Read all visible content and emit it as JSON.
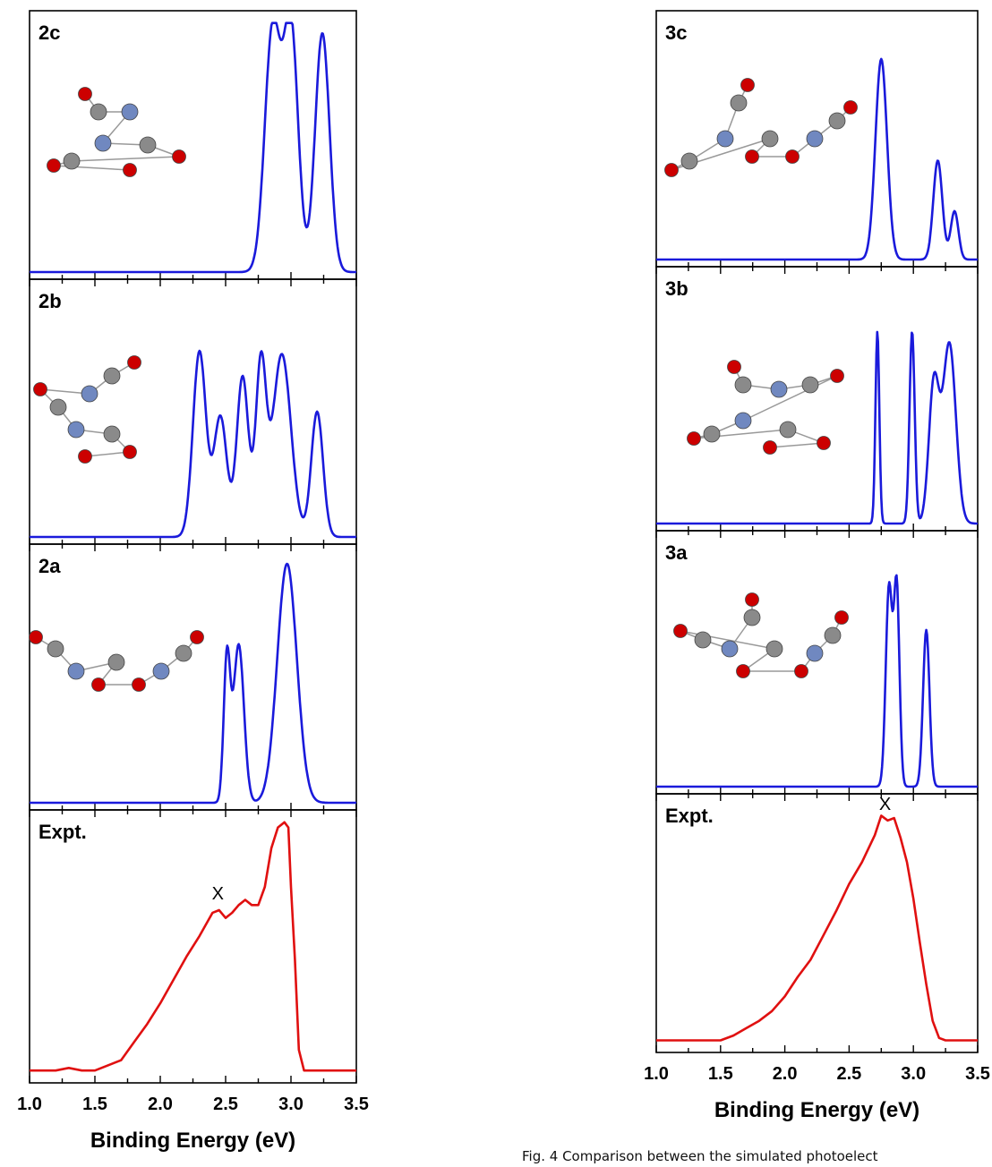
{
  "figure": {
    "caption": "Fig. 4  Comparison between the simulated photoelect",
    "left": {
      "xlabel": "Binding Energy (eV)",
      "xlim": [
        1.0,
        3.5
      ],
      "xticks": [
        "1.0",
        "1.5",
        "2.0",
        "2.5",
        "3.0",
        "3.5"
      ],
      "panels": [
        {
          "label": "2c",
          "kind": "simulated",
          "molecule": "molecule-2c"
        },
        {
          "label": "2b",
          "kind": "simulated",
          "molecule": "molecule-2b"
        },
        {
          "label": "2a",
          "kind": "simulated",
          "molecule": "molecule-2a"
        },
        {
          "label": "Expt.",
          "kind": "experimental",
          "marker": "X"
        }
      ]
    },
    "right": {
      "xlabel": "Binding Energy (eV)",
      "xlim": [
        1.0,
        3.5
      ],
      "xticks": [
        "1.0",
        "1.5",
        "2.0",
        "2.5",
        "3.0",
        "3.5"
      ],
      "panels": [
        {
          "label": "3c",
          "kind": "simulated",
          "molecule": "molecule-3c"
        },
        {
          "label": "3b",
          "kind": "simulated",
          "molecule": "molecule-3b"
        },
        {
          "label": "3a",
          "kind": "simulated",
          "molecule": "molecule-3a"
        },
        {
          "label": "Expt.",
          "kind": "experimental",
          "marker": "X"
        }
      ]
    }
  },
  "colors": {
    "simulated": "#1a1adb",
    "experimental": "#e01010",
    "axis": "#000000",
    "oxygen": "#cc0000",
    "carbon": "#8a8a8a",
    "nitrogen": "#7088c0"
  },
  "chart_data": [
    {
      "type": "line",
      "panel": "2c",
      "xlim": [
        1.0,
        3.5
      ],
      "peaks": [
        {
          "x": 2.86,
          "height": 0.96,
          "width": 0.06
        },
        {
          "x": 3.0,
          "height": 0.96,
          "width": 0.055
        },
        {
          "x": 3.24,
          "height": 0.94,
          "width": 0.055
        }
      ]
    },
    {
      "type": "line",
      "panel": "2b",
      "xlim": [
        1.0,
        3.5
      ],
      "peaks": [
        {
          "x": 2.3,
          "height": 0.74,
          "width": 0.05
        },
        {
          "x": 2.46,
          "height": 0.48,
          "width": 0.05
        },
        {
          "x": 2.63,
          "height": 0.64,
          "width": 0.045
        },
        {
          "x": 2.77,
          "height": 0.68,
          "width": 0.04
        },
        {
          "x": 2.93,
          "height": 0.73,
          "width": 0.07
        },
        {
          "x": 3.2,
          "height": 0.5,
          "width": 0.045
        }
      ]
    },
    {
      "type": "line",
      "panel": "2a",
      "xlim": [
        1.0,
        3.5
      ],
      "peaks": [
        {
          "x": 2.51,
          "height": 0.57,
          "width": 0.025
        },
        {
          "x": 2.6,
          "height": 0.63,
          "width": 0.04
        },
        {
          "x": 2.97,
          "height": 0.95,
          "width": 0.075
        }
      ]
    },
    {
      "type": "line",
      "panel": "3c",
      "xlim": [
        1.0,
        3.5
      ],
      "peaks": [
        {
          "x": 2.75,
          "height": 0.83,
          "width": 0.045
        },
        {
          "x": 3.19,
          "height": 0.41,
          "width": 0.035
        },
        {
          "x": 3.32,
          "height": 0.2,
          "width": 0.03
        }
      ]
    },
    {
      "type": "line",
      "panel": "3b",
      "xlim": [
        1.0,
        3.5
      ],
      "peaks": [
        {
          "x": 2.72,
          "height": 0.77,
          "width": 0.015
        },
        {
          "x": 2.99,
          "height": 0.77,
          "width": 0.02
        },
        {
          "x": 3.16,
          "height": 0.56,
          "width": 0.04
        },
        {
          "x": 3.28,
          "height": 0.72,
          "width": 0.05
        }
      ]
    },
    {
      "type": "line",
      "panel": "3a",
      "xlim": [
        1.0,
        3.5
      ],
      "peaks": [
        {
          "x": 2.81,
          "height": 0.8,
          "width": 0.025
        },
        {
          "x": 2.87,
          "height": 0.8,
          "width": 0.022
        },
        {
          "x": 3.1,
          "height": 0.63,
          "width": 0.025
        }
      ]
    },
    {
      "type": "line",
      "panel": "Expt. (left)",
      "xlim": [
        1.0,
        3.5
      ],
      "marker": {
        "label": "X",
        "x": 2.44
      },
      "x": [
        1.0,
        1.2,
        1.3,
        1.4,
        1.5,
        1.6,
        1.7,
        1.8,
        1.9,
        2.0,
        2.1,
        2.2,
        2.3,
        2.4,
        2.45,
        2.5,
        2.55,
        2.6,
        2.65,
        2.7,
        2.75,
        2.8,
        2.85,
        2.9,
        2.95,
        2.98,
        3.0,
        3.03,
        3.06,
        3.1,
        3.2,
        3.5
      ],
      "y": [
        0.02,
        0.02,
        0.03,
        0.02,
        0.02,
        0.04,
        0.06,
        0.13,
        0.2,
        0.28,
        0.37,
        0.46,
        0.54,
        0.63,
        0.64,
        0.61,
        0.63,
        0.66,
        0.68,
        0.66,
        0.66,
        0.73,
        0.88,
        0.96,
        0.98,
        0.96,
        0.73,
        0.45,
        0.1,
        0.02,
        0.02,
        0.02
      ]
    },
    {
      "type": "line",
      "panel": "Expt. (right)",
      "xlim": [
        1.0,
        3.5
      ],
      "marker": {
        "label": "X",
        "x": 2.78
      },
      "x": [
        1.0,
        1.5,
        1.6,
        1.7,
        1.8,
        1.9,
        2.0,
        2.1,
        2.2,
        2.3,
        2.4,
        2.5,
        2.6,
        2.7,
        2.75,
        2.8,
        2.85,
        2.9,
        2.95,
        3.0,
        3.05,
        3.1,
        3.15,
        3.2,
        3.25,
        3.5
      ],
      "y": [
        0.02,
        0.02,
        0.04,
        0.07,
        0.1,
        0.14,
        0.2,
        0.28,
        0.35,
        0.45,
        0.55,
        0.66,
        0.75,
        0.86,
        0.94,
        0.92,
        0.93,
        0.85,
        0.75,
        0.6,
        0.42,
        0.25,
        0.1,
        0.03,
        0.02,
        0.02
      ]
    }
  ]
}
